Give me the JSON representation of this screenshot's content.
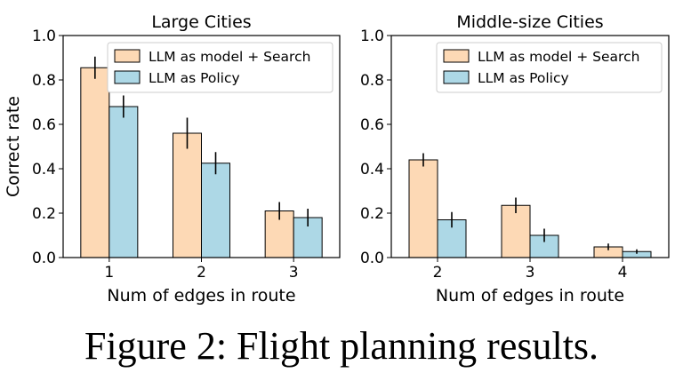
{
  "caption": "Figure 2: Flight planning results.",
  "colors": {
    "search": "#fdd9b5",
    "policy": "#add8e6",
    "edge": "#000000"
  },
  "chart_data": [
    {
      "type": "bar",
      "title": "Large Cities",
      "xlabel": "Num of edges in route",
      "ylabel": "Correct rate",
      "categories": [
        "1",
        "2",
        "3"
      ],
      "ylim": [
        0,
        1.0
      ],
      "yticks": [
        "0.0",
        "0.2",
        "0.4",
        "0.6",
        "0.8",
        "1.0"
      ],
      "legend_position": "top-right",
      "series": [
        {
          "name": "LLM as model + Search",
          "color": "#fdd9b5",
          "values": [
            0.855,
            0.56,
            0.21
          ],
          "errors": [
            0.05,
            0.07,
            0.04
          ]
        },
        {
          "name": "LLM as Policy",
          "color": "#add8e6",
          "values": [
            0.68,
            0.425,
            0.18
          ],
          "errors": [
            0.05,
            0.05,
            0.04
          ]
        }
      ]
    },
    {
      "type": "bar",
      "title": "Middle-size Cities",
      "xlabel": "Num of edges in route",
      "ylabel": "",
      "categories": [
        "2",
        "3",
        "4"
      ],
      "ylim": [
        0,
        1.0
      ],
      "yticks": [
        "0.0",
        "0.2",
        "0.4",
        "0.6",
        "0.8",
        "1.0"
      ],
      "legend_position": "top-right",
      "series": [
        {
          "name": "LLM as model + Search",
          "color": "#fdd9b5",
          "values": [
            0.44,
            0.235,
            0.048
          ],
          "errors": [
            0.03,
            0.035,
            0.015
          ]
        },
        {
          "name": "LLM as Policy",
          "color": "#add8e6",
          "values": [
            0.17,
            0.1,
            0.027
          ],
          "errors": [
            0.035,
            0.03,
            0.01
          ]
        }
      ]
    }
  ]
}
